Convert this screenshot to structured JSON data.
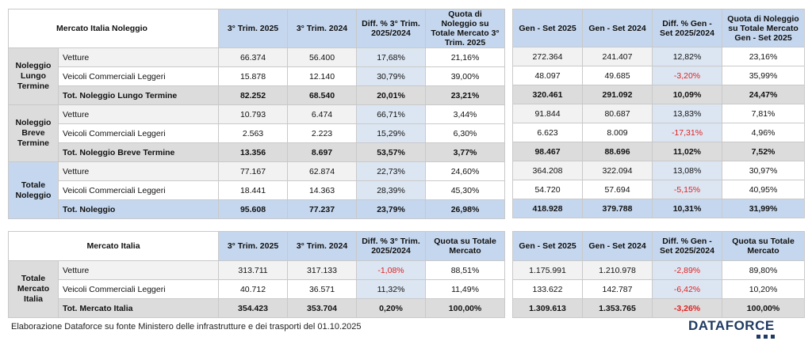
{
  "top": {
    "title": "Mercato Italia Noleggio",
    "headers_q": [
      "3° Trim. 2025",
      "3° Trim. 2024",
      "Diff. % 3° Trim. 2025/2024",
      "Quota di Noleggio su Totale Mercato 3° Trim. 2025"
    ],
    "headers_y": [
      "Gen - Set 2025",
      "Gen - Set 2024",
      "Diff. % Gen - Set 2025/2024",
      "Quota di Noleggio su Totale Mercato Gen - Set 2025"
    ],
    "groups": [
      {
        "label": "Noleggio Lungo Termine",
        "rows": [
          {
            "label": "Vetture",
            "q": [
              "66.374",
              "56.400",
              "17,68%",
              "21,16%"
            ],
            "y": [
              "272.364",
              "241.407",
              "12,82%",
              "23,16%"
            ]
          },
          {
            "label": "Veicoli Commerciali Leggeri",
            "q": [
              "15.878",
              "12.140",
              "30,79%",
              "39,00%"
            ],
            "y": [
              "48.097",
              "49.685",
              "-3,20%",
              "35,99%"
            ]
          },
          {
            "label": "Tot. Noleggio Lungo Termine",
            "q": [
              "82.252",
              "68.540",
              "20,01%",
              "23,21%"
            ],
            "y": [
              "320.461",
              "291.092",
              "10,09%",
              "24,47%"
            ]
          }
        ]
      },
      {
        "label": "Noleggio Breve Termine",
        "rows": [
          {
            "label": "Vetture",
            "q": [
              "10.793",
              "6.474",
              "66,71%",
              "3,44%"
            ],
            "y": [
              "91.844",
              "80.687",
              "13,83%",
              "7,81%"
            ]
          },
          {
            "label": "Veicoli Commerciali Leggeri",
            "q": [
              "2.563",
              "2.223",
              "15,29%",
              "6,30%"
            ],
            "y": [
              "6.623",
              "8.009",
              "-17,31%",
              "4,96%"
            ]
          },
          {
            "label": "Tot. Noleggio Breve Termine",
            "q": [
              "13.356",
              "8.697",
              "53,57%",
              "3,77%"
            ],
            "y": [
              "98.467",
              "88.696",
              "11,02%",
              "7,52%"
            ]
          }
        ]
      },
      {
        "label": "Totale Noleggio",
        "rows": [
          {
            "label": "Vetture",
            "q": [
              "77.167",
              "62.874",
              "22,73%",
              "24,60%"
            ],
            "y": [
              "364.208",
              "322.094",
              "13,08%",
              "30,97%"
            ]
          },
          {
            "label": "Veicoli Commerciali Leggeri",
            "q": [
              "18.441",
              "14.363",
              "28,39%",
              "45,30%"
            ],
            "y": [
              "54.720",
              "57.694",
              "-5,15%",
              "40,95%"
            ]
          },
          {
            "label": "Tot. Noleggio",
            "q": [
              "95.608",
              "77.237",
              "23,79%",
              "26,98%"
            ],
            "y": [
              "418.928",
              "379.788",
              "10,31%",
              "31,99%"
            ]
          }
        ]
      }
    ]
  },
  "bottom": {
    "title": "Mercato Italia",
    "headers_q": [
      "3° Trim. 2025",
      "3° Trim. 2024",
      "Diff. % 3° Trim. 2025/2024",
      "Quota su Totale Mercato"
    ],
    "headers_y": [
      "Gen - Set 2025",
      "Gen - Set 2024",
      "Diff. % Gen - Set 2025/2024",
      "Quota su Totale Mercato"
    ],
    "group": {
      "label": "Totale Mercato Italia",
      "rows": [
        {
          "label": "Vetture",
          "q": [
            "313.711",
            "317.133",
            "-1,08%",
            "88,51%"
          ],
          "y": [
            "1.175.991",
            "1.210.978",
            "-2,89%",
            "89,80%"
          ]
        },
        {
          "label": "Veicoli Commerciali Leggeri",
          "q": [
            "40.712",
            "36.571",
            "11,32%",
            "11,49%"
          ],
          "y": [
            "133.622",
            "142.787",
            "-6,42%",
            "10,20%"
          ]
        },
        {
          "label": "Tot. Mercato Italia",
          "q": [
            "354.423",
            "353.704",
            "0,20%",
            "100,00%"
          ],
          "y": [
            "1.309.613",
            "1.353.765",
            "-3,26%",
            "100,00%"
          ]
        }
      ]
    }
  },
  "footnote": "Elaborazione Dataforce su fonte Ministero delle infrastrutture e dei trasporti del 01.10.2025",
  "logo": "DATAFORCE",
  "colors": {
    "header_blue": "#c5d7ee",
    "total_grey": "#dcdcdc",
    "negative_red": "#e02020",
    "logo_navy": "#1f3a63"
  }
}
